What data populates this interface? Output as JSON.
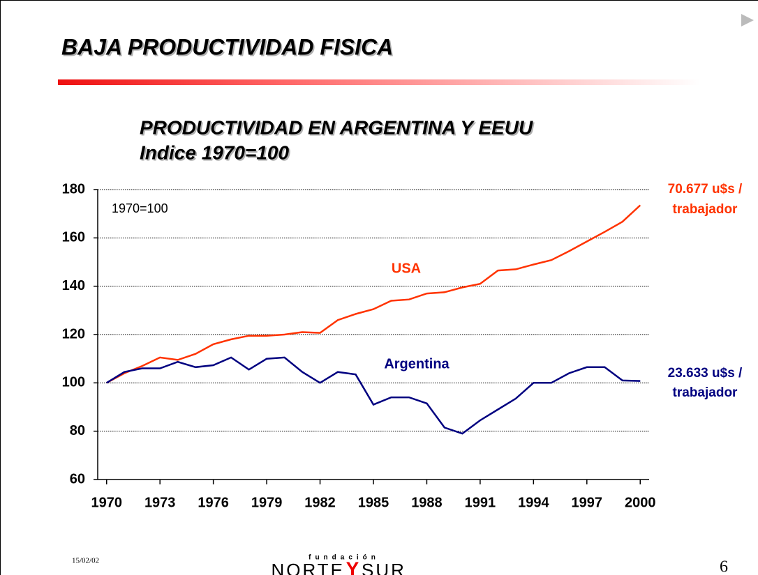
{
  "slide_title": "BAJA PRODUCTIVIDAD FISICA",
  "footer": {
    "date": "15/02/02",
    "page": "6",
    "logo": {
      "top": "fundación",
      "left": "NORTE",
      "mid": "Y",
      "right": "SUR"
    }
  },
  "chart_data": {
    "type": "line",
    "title": [
      "PRODUCTIVIDAD EN ARGENTINA Y EEUU",
      "Indice 1970=100"
    ],
    "annotations": [
      "1970=100"
    ],
    "x": [
      1970,
      1971,
      1972,
      1973,
      1974,
      1975,
      1976,
      1977,
      1978,
      1979,
      1980,
      1981,
      1982,
      1983,
      1984,
      1985,
      1986,
      1987,
      1988,
      1989,
      1990,
      1991,
      1992,
      1993,
      1994,
      1995,
      1996,
      1997,
      1998,
      1999,
      2000
    ],
    "xlim": [
      1969.5,
      2000.5
    ],
    "xticks": [
      1970,
      1973,
      1976,
      1979,
      1982,
      1985,
      1988,
      1991,
      1994,
      1997,
      2000
    ],
    "ylim": [
      60,
      180
    ],
    "yticks": [
      60,
      80,
      100,
      120,
      140,
      160,
      180
    ],
    "grid": true,
    "series": [
      {
        "name": "USA",
        "color": "#ff3300",
        "end_label": [
          "70.677 u$s /",
          "trabajador"
        ],
        "values": [
          100,
          104,
          107,
          110.5,
          109.5,
          112,
          116,
          118,
          119.5,
          119.5,
          120,
          121,
          120.7,
          126,
          128.5,
          130.5,
          134,
          134.5,
          137,
          137.5,
          139.5,
          141,
          146.5,
          147,
          149,
          150.8,
          154.5,
          158.5,
          162.5,
          166.7,
          173.5
        ]
      },
      {
        "name": "Argentina",
        "color": "#000080",
        "end_label": [
          "23.633 u$s /",
          "trabajador"
        ],
        "values": [
          100,
          104.5,
          106,
          106,
          108.7,
          106.5,
          107.3,
          110.5,
          105.5,
          110,
          110.5,
          104.5,
          100,
          104.5,
          103.5,
          91,
          94,
          94,
          91.5,
          81.5,
          79,
          84.5,
          89,
          93.5,
          100,
          100,
          104,
          106.5,
          106.5,
          101,
          100.8
        ]
      }
    ]
  }
}
